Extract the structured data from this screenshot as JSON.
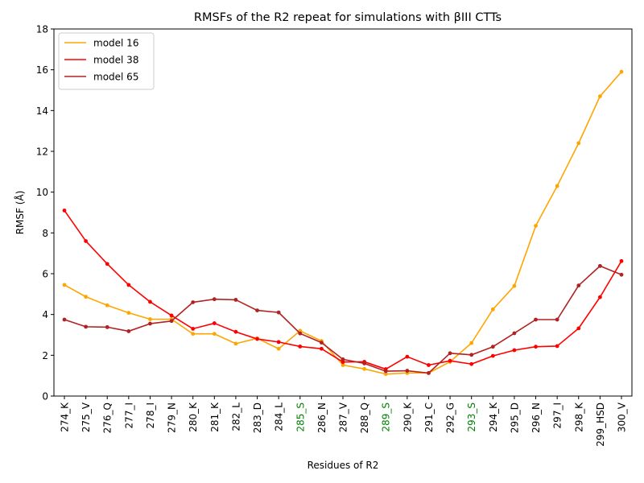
{
  "chart_data": {
    "type": "line",
    "title": "RMSFs of the R2 repeat for simulations with βIII CTTs",
    "xlabel": "Residues of R2",
    "ylabel": "RMSF (Å)",
    "ylim": [
      0,
      18
    ],
    "yticks": [
      0,
      2,
      4,
      6,
      8,
      10,
      12,
      14,
      16,
      18
    ],
    "grid": false,
    "legend_position": "top-left",
    "categories": [
      "274_K",
      "275_V",
      "276_Q",
      "277_I",
      "278_I",
      "279_N",
      "280_K",
      "281_K",
      "282_L",
      "283_D",
      "284_L",
      "285_S",
      "286_N",
      "287_V",
      "288_Q",
      "289_S",
      "290_K",
      "291_C",
      "292_G",
      "293_S",
      "294_K",
      "295_D",
      "296_N",
      "297_I",
      "298_K",
      "299_HSD",
      "300_V"
    ],
    "highlighted_categories": [
      "285_S",
      "289_S",
      "293_S"
    ],
    "highlight_color": "#008000",
    "series": [
      {
        "name": "model 16",
        "color": "#ffa500",
        "values": [
          5.45,
          4.87,
          4.45,
          4.08,
          3.77,
          3.77,
          3.05,
          3.05,
          2.57,
          2.83,
          2.32,
          3.2,
          2.7,
          1.52,
          1.33,
          1.08,
          1.13,
          1.13,
          1.68,
          2.6,
          4.25,
          5.4,
          8.35,
          10.3,
          12.4,
          14.7,
          15.9
        ]
      },
      {
        "name": "model 38",
        "color": "#ff0000",
        "values": [
          9.1,
          7.6,
          6.48,
          5.45,
          4.62,
          3.95,
          3.3,
          3.57,
          3.15,
          2.8,
          2.65,
          2.43,
          2.32,
          1.67,
          1.68,
          1.32,
          1.93,
          1.52,
          1.73,
          1.57,
          1.97,
          2.25,
          2.42,
          2.45,
          3.32,
          4.85,
          6.62
        ]
      },
      {
        "name": "model 65",
        "color": "#b22222",
        "values": [
          3.75,
          3.4,
          3.38,
          3.18,
          3.55,
          3.68,
          4.6,
          4.75,
          4.72,
          4.2,
          4.1,
          3.07,
          2.62,
          1.8,
          1.6,
          1.22,
          1.24,
          1.13,
          2.1,
          2.02,
          2.42,
          3.08,
          3.75,
          3.75,
          5.42,
          6.38,
          5.95
        ]
      }
    ]
  }
}
